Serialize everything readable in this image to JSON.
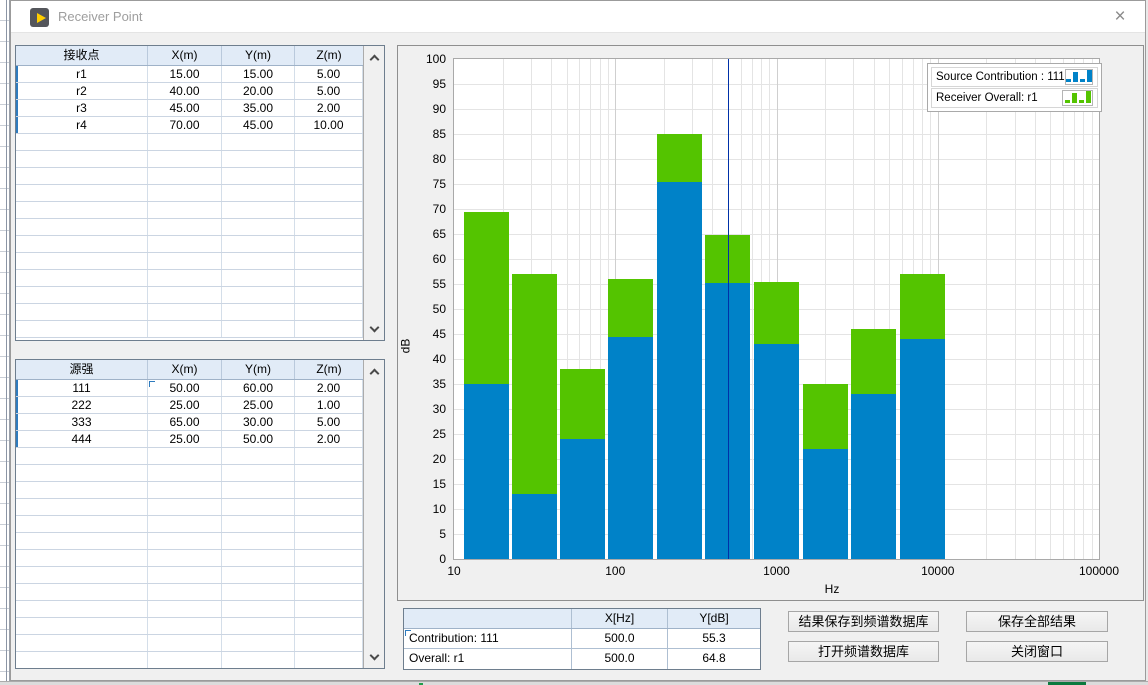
{
  "window": {
    "title": "Receiver Point"
  },
  "icons": {
    "app_icon": "labview-play-triangle",
    "close_icon": "×",
    "scroll_up_icon": "chevron-up",
    "scroll_down_icon": "chevron-down",
    "legend_icon": "mini-bar-chart"
  },
  "receiver_table": {
    "headers": [
      "接收点",
      "X(m)",
      "Y(m)",
      "Z(m)"
    ],
    "rows": [
      [
        "r1",
        "15.00",
        "15.00",
        "5.00"
      ],
      [
        "r2",
        "40.00",
        "20.00",
        "5.00"
      ],
      [
        "r3",
        "45.00",
        "35.00",
        "2.00"
      ],
      [
        "r4",
        "70.00",
        "45.00",
        "10.00"
      ]
    ]
  },
  "source_table": {
    "headers": [
      "源强",
      "X(m)",
      "Y(m)",
      "Z(m)"
    ],
    "rows": [
      [
        "111",
        "50.00",
        "60.00",
        "2.00"
      ],
      [
        "222",
        "25.00",
        "25.00",
        "1.00"
      ],
      [
        "333",
        "65.00",
        "30.00",
        "5.00"
      ],
      [
        "444",
        "25.00",
        "50.00",
        "2.00"
      ]
    ]
  },
  "chart_data": {
    "type": "bar",
    "stacked": true,
    "x_scale": "log",
    "xlabel": "Hz",
    "ylabel": "dB",
    "xlim": [
      10,
      100000
    ],
    "ylim": [
      0,
      100
    ],
    "ytick_step": 5,
    "xticks": [
      10,
      100,
      1000,
      10000,
      100000
    ],
    "categories_hz": [
      16,
      31.5,
      63,
      125,
      250,
      500,
      1000,
      2000,
      4000,
      8000
    ],
    "series": [
      {
        "name": "Source Contribution : 111",
        "color": "#0082C8",
        "values": [
          35,
          13,
          24,
          44.5,
          75.5,
          55.3,
          43,
          22,
          33,
          44
        ]
      },
      {
        "name": "Receiver Overall: r1",
        "color": "#54C400",
        "values": [
          69.5,
          57,
          38,
          56,
          85,
          64.8,
          55.5,
          35,
          46,
          57
        ]
      }
    ],
    "cursor_hz": 500,
    "legend_position": "top-right",
    "grid": true
  },
  "readout_table": {
    "headers": [
      "",
      "X[Hz]",
      "Y[dB]"
    ],
    "rows": [
      [
        "Contribution: 111",
        "500.0",
        "55.3"
      ],
      [
        "Overall: r1",
        "500.0",
        "64.8"
      ]
    ]
  },
  "buttons": {
    "save_to_db": "结果保存到频谱数据库",
    "save_all": "保存全部结果",
    "open_db": "打开频谱数据库",
    "close_window": "关闭窗口"
  },
  "colors": {
    "bar_blue": "#0082C8",
    "bar_green": "#54C400",
    "cursor": "#0030A8",
    "table_header_bg": "#E1EBF7",
    "row_marker": "#2E7BBE"
  }
}
